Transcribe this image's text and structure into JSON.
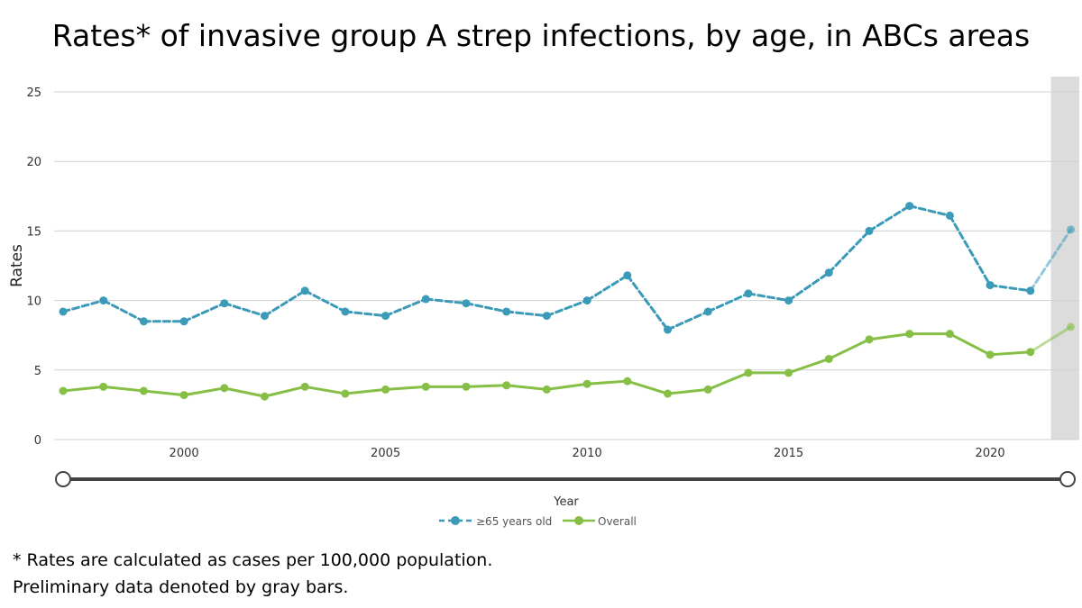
{
  "title": "Rates* of invasive group A strep infections, by age, in ABCs areas",
  "footnotes": {
    "rates": "* Rates are calculated as cases per 100,000 population.",
    "preliminary": "Preliminary data denoted by gray bars."
  },
  "colors": {
    "senior": "#3b9ab8",
    "overall": "#85bf45",
    "grid": "#d0d0d0",
    "preliminary_band": "#dcdcdc",
    "slider_track": "#444444"
  },
  "chart_data": {
    "type": "line",
    "title": "Rates* of invasive group A strep infections, by age, in ABCs areas",
    "xlabel": "Year",
    "ylabel": "Rates",
    "ylim": [
      0,
      25
    ],
    "yticks": [
      0,
      5,
      10,
      15,
      20,
      25
    ],
    "xticks": [
      2000,
      2005,
      2010,
      2015,
      2020
    ],
    "x": [
      1997,
      1998,
      1999,
      2000,
      2001,
      2002,
      2003,
      2004,
      2005,
      2006,
      2007,
      2008,
      2009,
      2010,
      2011,
      2012,
      2013,
      2014,
      2015,
      2016,
      2017,
      2018,
      2019,
      2020,
      2021,
      2022
    ],
    "grid": true,
    "legend_position": "bottom-center",
    "preliminary_years": [
      2022
    ],
    "series": [
      {
        "name": "≥65 years old",
        "style": "dashed",
        "values": [
          9.2,
          10.0,
          8.5,
          8.5,
          9.8,
          8.9,
          10.7,
          9.2,
          8.9,
          10.1,
          9.8,
          9.2,
          8.9,
          10.0,
          11.8,
          7.9,
          9.2,
          10.5,
          10.0,
          12.0,
          15.0,
          16.8,
          16.1,
          11.1,
          10.7,
          15.1
        ]
      },
      {
        "name": "Overall",
        "style": "solid",
        "values": [
          3.5,
          3.8,
          3.5,
          3.2,
          3.7,
          3.1,
          3.8,
          3.3,
          3.6,
          3.8,
          3.8,
          3.9,
          3.6,
          4.0,
          4.2,
          3.3,
          3.6,
          4.8,
          4.8,
          5.8,
          7.2,
          7.6,
          7.6,
          6.1,
          6.3,
          8.1
        ]
      }
    ]
  }
}
